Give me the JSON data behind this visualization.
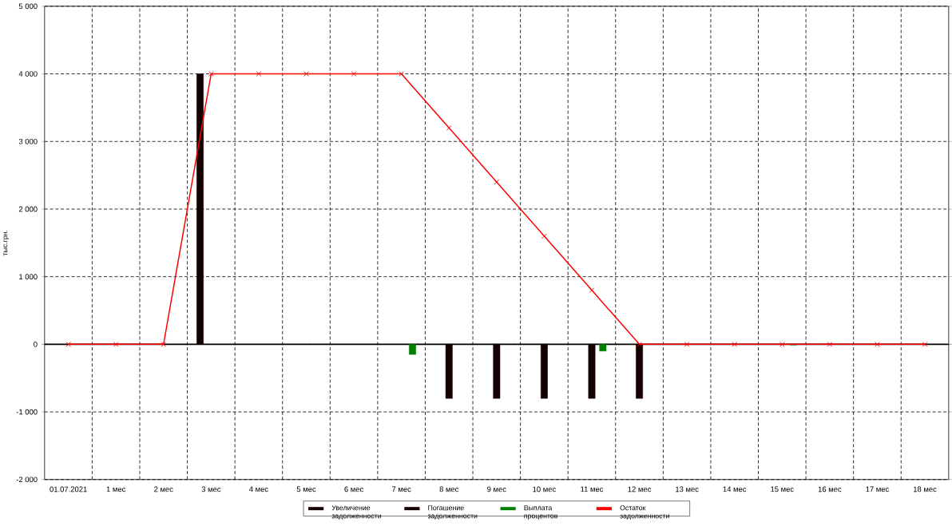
{
  "chart_data": {
    "type": "bar",
    "ylabel": "тыс.грн.",
    "categories": [
      "01.07.2021",
      "1 мес",
      "2 мес",
      "3 мес",
      "4 мес",
      "5 мес",
      "6 мес",
      "7 мес",
      "8 мес",
      "9 мес",
      "10 мес",
      "11 мес",
      "12 мес",
      "13 мес",
      "14 мес",
      "15 мес",
      "16 мес",
      "17 мес",
      "18 мес"
    ],
    "series": [
      {
        "name": "Увеличение задолженности",
        "color": "#140000",
        "values": [
          null,
          null,
          null,
          4000,
          null,
          null,
          null,
          null,
          null,
          null,
          null,
          null,
          null,
          null,
          null,
          null,
          null,
          null,
          null
        ]
      },
      {
        "name": "Погашение задолженности",
        "color": "#140000",
        "values": [
          null,
          null,
          null,
          null,
          null,
          null,
          null,
          null,
          -800,
          -800,
          -800,
          -800,
          -800,
          null,
          null,
          null,
          null,
          null,
          null
        ]
      },
      {
        "name": "Выплата процентов",
        "color": "#008000",
        "values": [
          null,
          null,
          null,
          null,
          null,
          null,
          null,
          -150,
          null,
          null,
          null,
          -100,
          null,
          null,
          null,
          -10,
          null,
          null,
          null
        ]
      },
      {
        "name": "Остаток задолженности",
        "type": "line",
        "color": "#ff0000",
        "marker": "cross",
        "line_style": "solid",
        "values": [
          0,
          0,
          0,
          4000,
          4000,
          4000,
          4000,
          4000,
          3200,
          2400,
          1600,
          800,
          0,
          0,
          0,
          0,
          0,
          0,
          0
        ]
      }
    ],
    "ylim": [
      -2000,
      5000
    ],
    "yticks": [
      {
        "value": -2000,
        "label": "-2 000"
      },
      {
        "value": -1000,
        "label": "-1 000"
      },
      0,
      {
        "value": 1000,
        "label": "1 000"
      },
      {
        "value": 2000,
        "label": "2 000"
      },
      {
        "value": 3000,
        "label": "3 000"
      },
      {
        "value": 4000,
        "label": "4 000"
      },
      {
        "value": 5000,
        "label": "5 000"
      }
    ],
    "grid": true,
    "legend": "bottom"
  }
}
